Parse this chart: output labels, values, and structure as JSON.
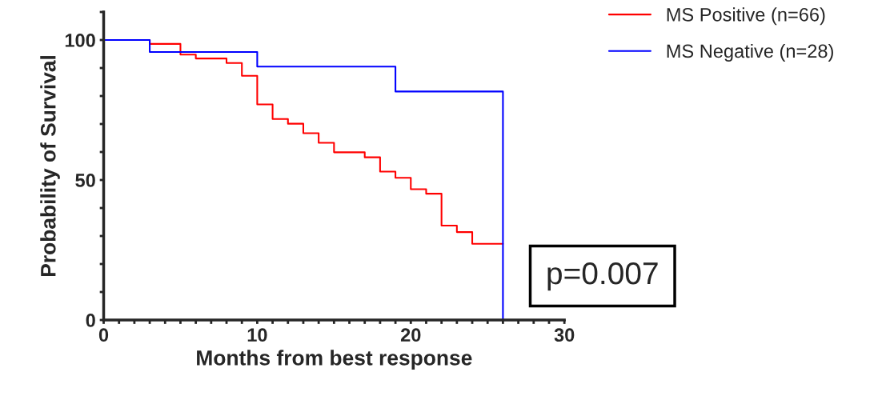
{
  "chart_data": {
    "type": "step",
    "xlabel": "Months from best response",
    "ylabel": "Probability of Survival",
    "xlim": [
      0,
      30
    ],
    "ylim": [
      0,
      110
    ],
    "xticks": [
      0,
      {
        "value": 1,
        "label": null
      },
      {
        "value": 2,
        "label": null
      },
      {
        "value": 3,
        "label": null
      },
      {
        "value": 4,
        "label": null
      },
      {
        "value": 5,
        "label": null
      },
      {
        "value": 6,
        "label": null
      },
      {
        "value": 7,
        "label": null
      },
      {
        "value": 8,
        "label": null
      },
      {
        "value": 9,
        "label": null
      },
      10,
      {
        "value": 11,
        "label": null
      },
      {
        "value": 12,
        "label": null
      },
      {
        "value": 13,
        "label": null
      },
      {
        "value": 14,
        "label": null
      },
      {
        "value": 15,
        "label": null
      },
      {
        "value": 16,
        "label": null
      },
      {
        "value": 17,
        "label": null
      },
      {
        "value": 18,
        "label": null
      },
      {
        "value": 19,
        "label": null
      },
      20,
      {
        "value": 21,
        "label": null
      },
      {
        "value": 22,
        "label": null
      },
      {
        "value": 23,
        "label": null
      },
      {
        "value": 24,
        "label": null
      },
      {
        "value": 25,
        "label": null
      },
      {
        "value": 26,
        "label": null
      },
      {
        "value": 27,
        "label": null
      },
      {
        "value": 28,
        "label": null
      },
      {
        "value": 29,
        "label": null
      },
      30
    ],
    "yticks": [
      0,
      {
        "value": 10,
        "label": null
      },
      {
        "value": 20,
        "label": null
      },
      {
        "value": 30,
        "label": null
      },
      {
        "value": 40,
        "label": null
      },
      50,
      {
        "value": 60,
        "label": null
      },
      {
        "value": 70,
        "label": null
      },
      {
        "value": 80,
        "label": null
      },
      {
        "value": 90,
        "label": null
      },
      100,
      {
        "value": 110,
        "label": null
      }
    ],
    "grid": false,
    "legend": "top right",
    "series": [
      {
        "name": "MS Positive (n=66)",
        "color": "#ff0000",
        "x": [
          0,
          3,
          5,
          6,
          8,
          9,
          10,
          11,
          12,
          13,
          14,
          15,
          17,
          18,
          19,
          20,
          21,
          22,
          23,
          24,
          26
        ],
        "values": [
          100,
          98.6,
          94.8,
          93.4,
          91.8,
          87.2,
          77.0,
          71.8,
          70.1,
          66.7,
          63.3,
          59.9,
          58.1,
          53.0,
          50.8,
          46.7,
          45.1,
          33.7,
          31.4,
          27.2,
          27.2
        ]
      },
      {
        "name": "MS Negative (n=28)",
        "color": "#0000ff",
        "x": [
          0,
          3,
          10,
          19,
          26
        ],
        "values": [
          100,
          95.7,
          90.5,
          81.6,
          0
        ]
      }
    ],
    "annotations": [
      "p=0.007"
    ]
  }
}
